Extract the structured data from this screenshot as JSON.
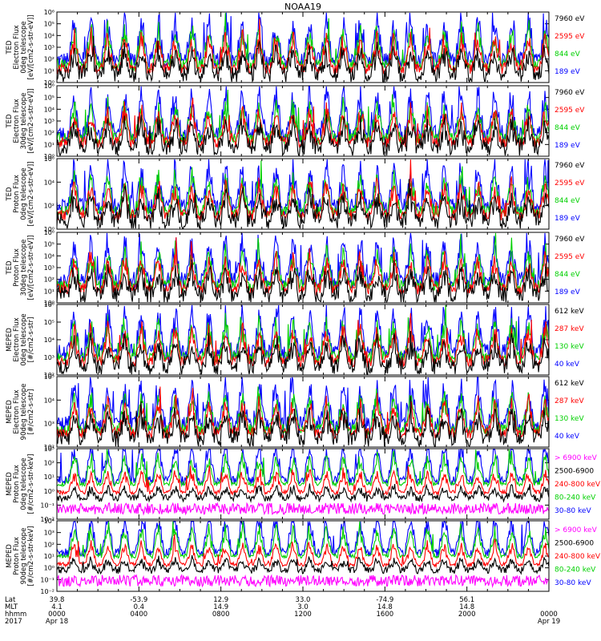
{
  "title": "NOAA19",
  "chart_data": {
    "type": "line",
    "title": "NOAA19",
    "time_range": [
      "2017-04-18 00:00",
      "2017-04-19 00:00"
    ],
    "x_ticks": [
      {
        "lat": "39.8",
        "mlt": "4.1",
        "hhmm": "0000",
        "date": "Apr 18"
      },
      {
        "lat": "-53.9",
        "mlt": "0.4",
        "hhmm": "0400",
        "date": ""
      },
      {
        "lat": "12.9",
        "mlt": "14.9",
        "hhmm": "0800",
        "date": ""
      },
      {
        "lat": "33.0",
        "mlt": "3.0",
        "hhmm": "1200",
        "date": ""
      },
      {
        "lat": "-74.9",
        "mlt": "14.8",
        "hhmm": "1600",
        "date": ""
      },
      {
        "lat": "56.1",
        "mlt": "14.8",
        "hhmm": "2000",
        "date": ""
      },
      {
        "lat": "",
        "mlt": "",
        "hhmm": "0000",
        "date": "Apr 19"
      }
    ],
    "x_row_labels": {
      "lat": "Lat",
      "mlt": "MLT",
      "hhmm": "hhmm",
      "year": "2017"
    },
    "panels": [
      {
        "ylabel": [
          "TED",
          "Electron Flux",
          "0deg telescope",
          "[eV/[cm2-s-str-eV]]"
        ],
        "yticks": [
          "10⁰",
          "10¹",
          "10²",
          "10³",
          "10⁴",
          "10⁵",
          "10⁶"
        ],
        "series": [
          {
            "name": "7960 eV",
            "color": "#000000"
          },
          {
            "name": "2595 eV",
            "color": "#ff0000"
          },
          {
            "name": "844 eV",
            "color": "#00d000"
          },
          {
            "name": "189 eV",
            "color": "#0000ff"
          }
        ]
      },
      {
        "ylabel": [
          "TED",
          "Electron Flux",
          "30deg telescope",
          "[eV/[cm2-s-str-eV]]"
        ],
        "yticks": [
          "10⁰",
          "10¹",
          "10²",
          "10³",
          "10⁴",
          "10⁵",
          "10⁶"
        ],
        "series": [
          {
            "name": "7960 eV",
            "color": "#000000"
          },
          {
            "name": "2595 eV",
            "color": "#ff0000"
          },
          {
            "name": "844 eV",
            "color": "#00d000"
          },
          {
            "name": "189 eV",
            "color": "#0000ff"
          }
        ]
      },
      {
        "ylabel": [
          "TED",
          "Proton Flux",
          "0deg telescope",
          "[eV/[cm2-s-str-eV]]"
        ],
        "yticks": [
          "10⁰",
          "10²",
          "10⁴",
          "10⁶"
        ],
        "series": [
          {
            "name": "7960 eV",
            "color": "#000000"
          },
          {
            "name": "2595 eV",
            "color": "#ff0000"
          },
          {
            "name": "844 eV",
            "color": "#00d000"
          },
          {
            "name": "189 eV",
            "color": "#0000ff"
          }
        ]
      },
      {
        "ylabel": [
          "TED",
          "Proton Flux",
          "30deg telescope",
          "[eV/[cm2-s-str-eV]]"
        ],
        "yticks": [
          "10⁰",
          "10¹",
          "10²",
          "10³",
          "10⁴",
          "10⁵",
          "10⁶"
        ],
        "series": [
          {
            "name": "7960 eV",
            "color": "#000000"
          },
          {
            "name": "2595 eV",
            "color": "#ff0000"
          },
          {
            "name": "844 eV",
            "color": "#00d000"
          },
          {
            "name": "189 eV",
            "color": "#0000ff"
          }
        ]
      },
      {
        "ylabel": [
          "MEPED",
          "Electron Flux",
          "0deg telescope",
          "[#/cm2-s-str]"
        ],
        "yticks": [
          "10²",
          "10³",
          "10⁴",
          "10⁵",
          "10⁶"
        ],
        "series": [
          {
            "name": "612 keV",
            "color": "#000000"
          },
          {
            "name": "287 keV",
            "color": "#ff0000"
          },
          {
            "name": "130 keV",
            "color": "#00d000"
          },
          {
            "name": "40 keV",
            "color": "#0000ff"
          }
        ]
      },
      {
        "ylabel": [
          "MEPED",
          "Electron Flux",
          "90deg telescope",
          "[#/cm2-s-str]"
        ],
        "yticks": [
          "10²",
          "10³",
          "10⁴",
          "10⁵"
        ],
        "series": [
          {
            "name": "612 keV",
            "color": "#000000"
          },
          {
            "name": "287 keV",
            "color": "#ff0000"
          },
          {
            "name": "130 keV",
            "color": "#00d000"
          },
          {
            "name": "40 keV",
            "color": "#0000ff"
          }
        ]
      },
      {
        "ylabel": [
          "MEPED",
          "Proton Flux",
          "0deg telescope",
          "[#/cm2-s-str-keV]"
        ],
        "yticks": [
          "10⁻²",
          "10⁻¹",
          "10⁰",
          "10¹",
          "10²",
          "10³"
        ],
        "series": [
          {
            "name": "> 6900 keV",
            "color": "#ff00ff"
          },
          {
            "name": "2500-6900",
            "color": "#000000"
          },
          {
            "name": "240-800 keV",
            "color": "#ff0000"
          },
          {
            "name": "80-240 keV",
            "color": "#00d000"
          },
          {
            "name": "30-80 keV",
            "color": "#0000ff"
          }
        ]
      },
      {
        "ylabel": [
          "MEPED",
          "Proton Flux",
          "90deg telescope",
          "[#/cm2-s-str-keV]"
        ],
        "yticks": [
          "10⁻²",
          "10⁻¹",
          "10⁰",
          "10¹",
          "10²",
          "10³",
          "10⁴"
        ],
        "series": [
          {
            "name": "> 6900 keV",
            "color": "#ff00ff"
          },
          {
            "name": "2500-6900",
            "color": "#000000"
          },
          {
            "name": "240-800 keV",
            "color": "#ff0000"
          },
          {
            "name": "80-240 keV",
            "color": "#00d000"
          },
          {
            "name": "30-80 keV",
            "color": "#0000ff"
          }
        ]
      }
    ]
  }
}
